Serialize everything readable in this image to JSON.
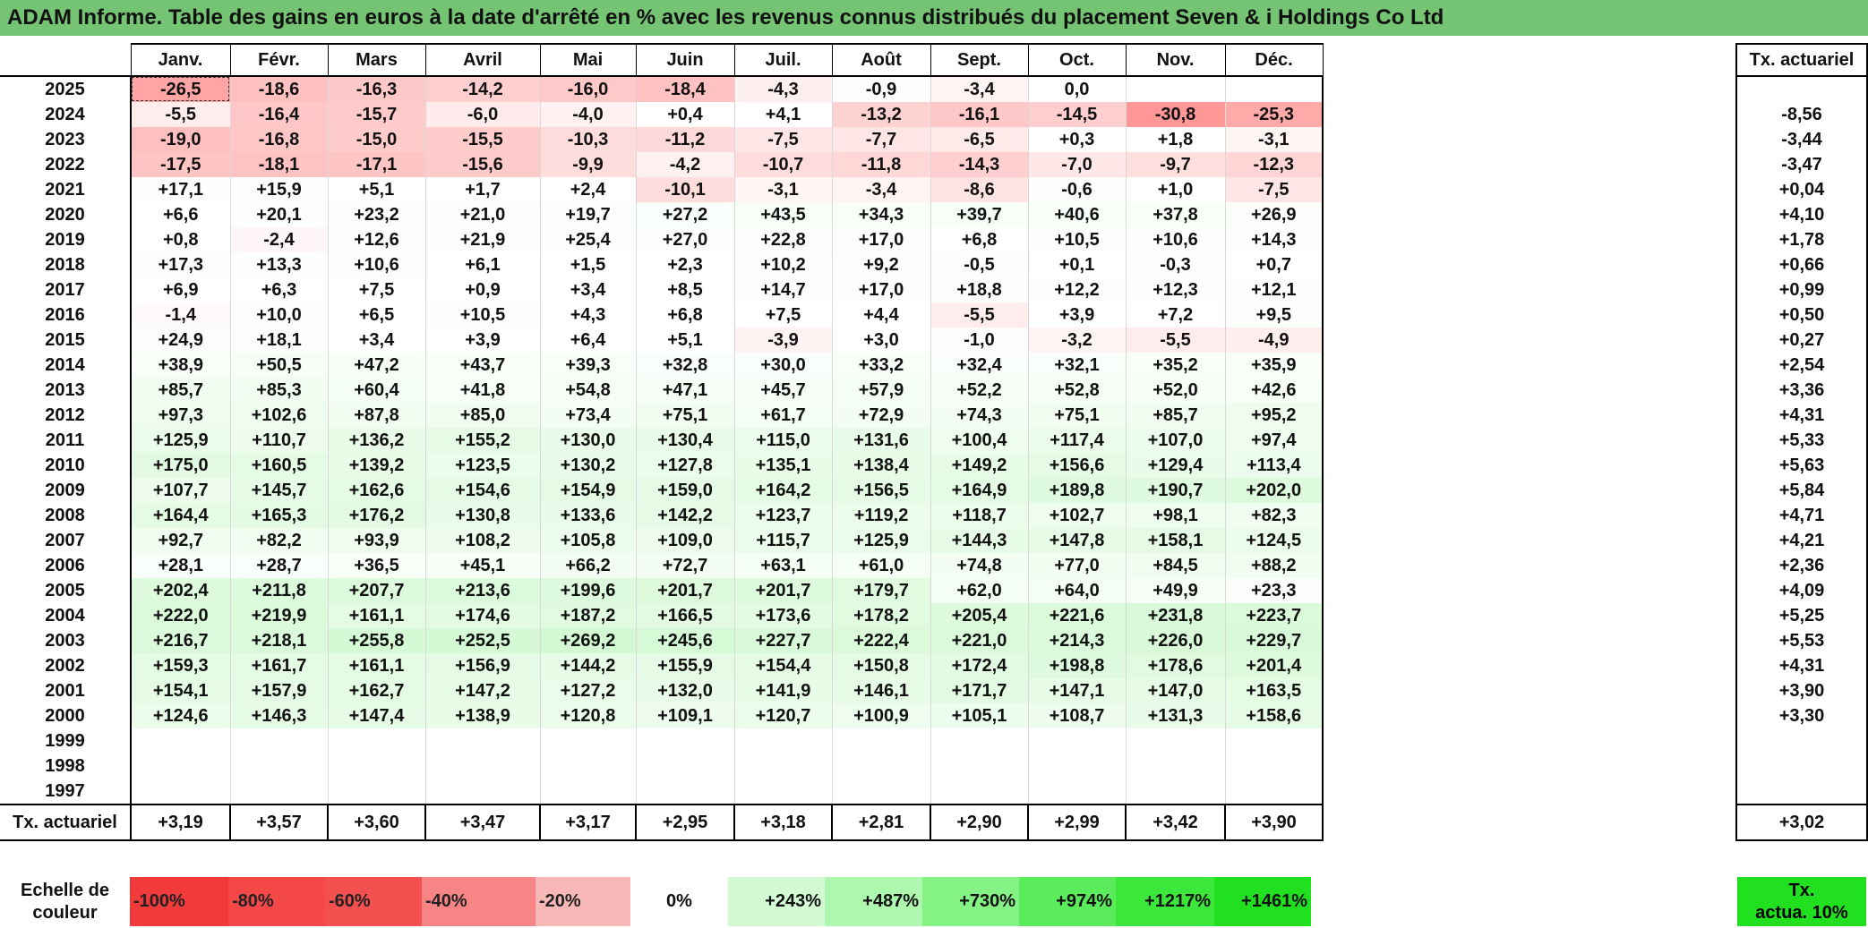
{
  "title": "ADAM Informe. Table des gains en euros à la date d'arrêté en % avec les revenus connus distribués du placement Seven & i Holdings Co Ltd",
  "months": [
    "Janv.",
    "Févr.",
    "Mars",
    "Avril",
    "Mai",
    "Juin",
    "Juil.",
    "Août",
    "Sept.",
    "Oct.",
    "Nov.",
    "Déc."
  ],
  "side_header": "Tx. actuariel",
  "rows": [
    {
      "year": "2025",
      "values": [
        "-26,5",
        "-18,6",
        "-16,3",
        "-14,2",
        "-16,0",
        "-18,4",
        "-4,3",
        "-0,9",
        "-3,4",
        "0,0",
        "",
        ""
      ],
      "rate": ""
    },
    {
      "year": "2024",
      "values": [
        "-5,5",
        "-16,4",
        "-15,7",
        "-6,0",
        "-4,0",
        "+0,4",
        "+4,1",
        "-13,2",
        "-16,1",
        "-14,5",
        "-30,8",
        "-25,3"
      ],
      "rate": "-8,56"
    },
    {
      "year": "2023",
      "values": [
        "-19,0",
        "-16,8",
        "-15,0",
        "-15,5",
        "-10,3",
        "-11,2",
        "-7,5",
        "-7,7",
        "-6,5",
        "+0,3",
        "+1,8",
        "-3,1"
      ],
      "rate": "-3,44"
    },
    {
      "year": "2022",
      "values": [
        "-17,5",
        "-18,1",
        "-17,1",
        "-15,6",
        "-9,9",
        "-4,2",
        "-10,7",
        "-11,8",
        "-14,3",
        "-7,0",
        "-9,7",
        "-12,3"
      ],
      "rate": "-3,47"
    },
    {
      "year": "2021",
      "values": [
        "+17,1",
        "+15,9",
        "+5,1",
        "+1,7",
        "+2,4",
        "-10,1",
        "-3,1",
        "-3,4",
        "-8,6",
        "-0,6",
        "+1,0",
        "-7,5"
      ],
      "rate": "+0,04"
    },
    {
      "year": "2020",
      "values": [
        "+6,6",
        "+20,1",
        "+23,2",
        "+21,0",
        "+19,7",
        "+27,2",
        "+43,5",
        "+34,3",
        "+39,7",
        "+40,6",
        "+37,8",
        "+26,9"
      ],
      "rate": "+4,10"
    },
    {
      "year": "2019",
      "values": [
        "+0,8",
        "-2,4",
        "+12,6",
        "+21,9",
        "+25,4",
        "+27,0",
        "+22,8",
        "+17,0",
        "+6,8",
        "+10,5",
        "+10,6",
        "+14,3"
      ],
      "rate": "+1,78"
    },
    {
      "year": "2018",
      "values": [
        "+17,3",
        "+13,3",
        "+10,6",
        "+6,1",
        "+1,5",
        "+2,3",
        "+10,2",
        "+9,2",
        "-0,5",
        "+0,1",
        "-0,3",
        "+0,7"
      ],
      "rate": "+0,66"
    },
    {
      "year": "2017",
      "values": [
        "+6,9",
        "+6,3",
        "+7,5",
        "+0,9",
        "+3,4",
        "+8,5",
        "+14,7",
        "+17,0",
        "+18,8",
        "+12,2",
        "+12,3",
        "+12,1"
      ],
      "rate": "+0,99"
    },
    {
      "year": "2016",
      "values": [
        "-1,4",
        "+10,0",
        "+6,5",
        "+10,5",
        "+4,3",
        "+6,8",
        "+7,5",
        "+4,4",
        "-5,5",
        "+3,9",
        "+7,2",
        "+9,5"
      ],
      "rate": "+0,50"
    },
    {
      "year": "2015",
      "values": [
        "+24,9",
        "+18,1",
        "+3,4",
        "+3,9",
        "+6,4",
        "+5,1",
        "-3,9",
        "+3,0",
        "-1,0",
        "-3,2",
        "-5,5",
        "-4,9"
      ],
      "rate": "+0,27"
    },
    {
      "year": "2014",
      "values": [
        "+38,9",
        "+50,5",
        "+47,2",
        "+43,7",
        "+39,3",
        "+32,8",
        "+30,0",
        "+33,2",
        "+32,4",
        "+32,1",
        "+35,2",
        "+35,9"
      ],
      "rate": "+2,54"
    },
    {
      "year": "2013",
      "values": [
        "+85,7",
        "+85,3",
        "+60,4",
        "+41,8",
        "+54,8",
        "+47,1",
        "+45,7",
        "+57,9",
        "+52,2",
        "+52,8",
        "+52,0",
        "+42,6"
      ],
      "rate": "+3,36"
    },
    {
      "year": "2012",
      "values": [
        "+97,3",
        "+102,6",
        "+87,8",
        "+85,0",
        "+73,4",
        "+75,1",
        "+61,7",
        "+72,9",
        "+74,3",
        "+75,1",
        "+85,7",
        "+95,2"
      ],
      "rate": "+4,31"
    },
    {
      "year": "2011",
      "values": [
        "+125,9",
        "+110,7",
        "+136,2",
        "+155,2",
        "+130,0",
        "+130,4",
        "+115,0",
        "+131,6",
        "+100,4",
        "+117,4",
        "+107,0",
        "+97,4"
      ],
      "rate": "+5,33"
    },
    {
      "year": "2010",
      "values": [
        "+175,0",
        "+160,5",
        "+139,2",
        "+123,5",
        "+130,2",
        "+127,8",
        "+135,1",
        "+138,4",
        "+149,2",
        "+156,6",
        "+129,4",
        "+113,4"
      ],
      "rate": "+5,63"
    },
    {
      "year": "2009",
      "values": [
        "+107,7",
        "+145,7",
        "+162,6",
        "+154,6",
        "+154,9",
        "+159,0",
        "+164,2",
        "+156,5",
        "+164,9",
        "+189,8",
        "+190,7",
        "+202,0"
      ],
      "rate": "+5,84"
    },
    {
      "year": "2008",
      "values": [
        "+164,4",
        "+165,3",
        "+176,2",
        "+130,8",
        "+133,6",
        "+142,2",
        "+123,7",
        "+119,2",
        "+118,7",
        "+102,7",
        "+98,1",
        "+82,3"
      ],
      "rate": "+4,71"
    },
    {
      "year": "2007",
      "values": [
        "+92,7",
        "+82,2",
        "+93,9",
        "+108,2",
        "+105,8",
        "+109,0",
        "+115,7",
        "+125,9",
        "+144,3",
        "+147,8",
        "+158,1",
        "+124,5"
      ],
      "rate": "+4,21"
    },
    {
      "year": "2006",
      "values": [
        "+28,1",
        "+28,7",
        "+36,5",
        "+45,1",
        "+66,2",
        "+72,7",
        "+63,1",
        "+61,0",
        "+74,8",
        "+77,0",
        "+84,5",
        "+88,2"
      ],
      "rate": "+2,36"
    },
    {
      "year": "2005",
      "values": [
        "+202,4",
        "+211,8",
        "+207,7",
        "+213,6",
        "+199,6",
        "+201,7",
        "+201,7",
        "+179,7",
        "+62,0",
        "+64,0",
        "+49,9",
        "+23,3"
      ],
      "rate": "+4,09"
    },
    {
      "year": "2004",
      "values": [
        "+222,0",
        "+219,9",
        "+161,1",
        "+174,6",
        "+187,2",
        "+166,5",
        "+173,6",
        "+178,2",
        "+205,4",
        "+221,6",
        "+231,8",
        "+223,7"
      ],
      "rate": "+5,25"
    },
    {
      "year": "2003",
      "values": [
        "+216,7",
        "+218,1",
        "+255,8",
        "+252,5",
        "+269,2",
        "+245,6",
        "+227,7",
        "+222,4",
        "+221,0",
        "+214,3",
        "+226,0",
        "+229,7"
      ],
      "rate": "+5,53"
    },
    {
      "year": "2002",
      "values": [
        "+159,3",
        "+161,7",
        "+161,1",
        "+156,9",
        "+144,2",
        "+155,9",
        "+154,4",
        "+150,8",
        "+172,4",
        "+198,8",
        "+178,6",
        "+201,4"
      ],
      "rate": "+4,31"
    },
    {
      "year": "2001",
      "values": [
        "+154,1",
        "+157,9",
        "+162,7",
        "+147,2",
        "+127,2",
        "+132,0",
        "+141,9",
        "+146,1",
        "+171,7",
        "+147,1",
        "+147,0",
        "+163,5"
      ],
      "rate": "+3,90"
    },
    {
      "year": "2000",
      "values": [
        "+124,6",
        "+146,3",
        "+147,4",
        "+138,9",
        "+120,8",
        "+109,1",
        "+120,7",
        "+100,9",
        "+105,1",
        "+108,7",
        "+131,3",
        "+158,6"
      ],
      "rate": "+3,30"
    },
    {
      "year": "1999",
      "values": [
        "",
        "",
        "",
        "",
        "",
        "",
        "",
        "",
        "",
        "",
        "",
        ""
      ],
      "rate": ""
    },
    {
      "year": "1998",
      "values": [
        "",
        "",
        "",
        "",
        "",
        "",
        "",
        "",
        "",
        "",
        "",
        ""
      ],
      "rate": ""
    },
    {
      "year": "1997",
      "values": [
        "",
        "",
        "",
        "",
        "",
        "",
        "",
        "",
        "",
        "",
        "",
        ""
      ],
      "rate": ""
    }
  ],
  "footer": {
    "label": "Tx. actuariel",
    "values": [
      "+3,19",
      "+3,57",
      "+3,60",
      "+3,47",
      "+3,17",
      "+2,95",
      "+3,18",
      "+2,81",
      "+2,90",
      "+2,99",
      "+3,42",
      "+3,90"
    ],
    "total": "+3,02"
  },
  "scale": {
    "label_line1": "Echelle de",
    "label_line2": "couleur",
    "steps": [
      {
        "text": "-100%",
        "color": "#f23a3a"
      },
      {
        "text": "-80%",
        "color": "#f44848"
      },
      {
        "text": "-60%",
        "color": "#f55050"
      },
      {
        "text": "-40%",
        "color": "#f78585"
      },
      {
        "text": "-20%",
        "color": "#f9b8b8"
      },
      {
        "text": "0%",
        "color": "#ffffff"
      },
      {
        "text": "+243%",
        "color": "#d3fbd3"
      },
      {
        "text": "+487%",
        "color": "#aef7ae"
      },
      {
        "text": "+730%",
        "color": "#84f284"
      },
      {
        "text": "+974%",
        "color": "#5aec5a"
      },
      {
        "text": "+1217%",
        "color": "#3ce73c"
      },
      {
        "text": "+1461%",
        "color": "#20e020"
      }
    ],
    "tx10_line1": "Tx.",
    "tx10_line2": "actua. 10%",
    "tx10_color": "#20e020"
  },
  "colors": {
    "title_bg": "#74c474",
    "negative_base": "#f23a3a",
    "positive_base": "#20e020"
  }
}
